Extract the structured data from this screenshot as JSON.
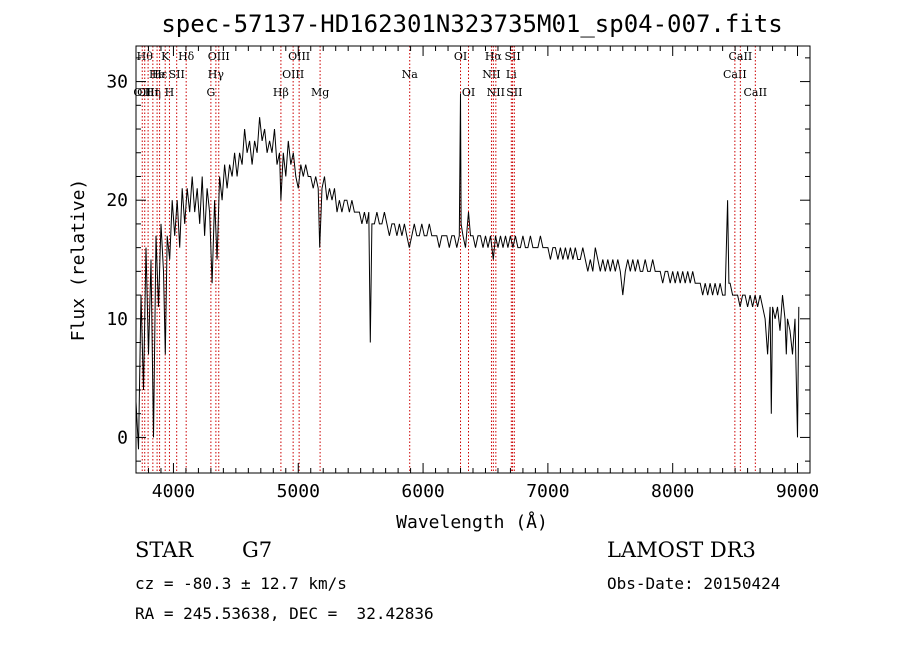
{
  "chart_data": {
    "type": "line",
    "title": "spec-57137-HD162301N323735M01_sp04-007.fits",
    "xlabel": "Wavelength (Å)",
    "ylabel": "Flux (relative)",
    "xlim": [
      3700,
      9100
    ],
    "ylim": [
      -3,
      33
    ],
    "x_ticks": [
      4000,
      5000,
      6000,
      7000,
      8000,
      9000
    ],
    "y_ticks": [
      0,
      10,
      20,
      30
    ],
    "grid": false,
    "series": [
      {
        "color": "#000000",
        "points": [
          [
            3700,
            3
          ],
          [
            3720,
            -1
          ],
          [
            3740,
            12
          ],
          [
            3760,
            4
          ],
          [
            3780,
            16
          ],
          [
            3800,
            7
          ],
          [
            3820,
            15
          ],
          [
            3840,
            0
          ],
          [
            3860,
            17
          ],
          [
            3880,
            11
          ],
          [
            3900,
            18
          ],
          [
            3920,
            14
          ],
          [
            3935,
            7
          ],
          [
            3950,
            17
          ],
          [
            3970,
            15
          ],
          [
            3990,
            20
          ],
          [
            4010,
            17
          ],
          [
            4030,
            20
          ],
          [
            4050,
            16
          ],
          [
            4070,
            21
          ],
          [
            4090,
            18
          ],
          [
            4110,
            21
          ],
          [
            4130,
            19
          ],
          [
            4150,
            22
          ],
          [
            4170,
            19
          ],
          [
            4190,
            21
          ],
          [
            4210,
            18
          ],
          [
            4230,
            22
          ],
          [
            4250,
            17
          ],
          [
            4270,
            21
          ],
          [
            4290,
            19
          ],
          [
            4310,
            13
          ],
          [
            4330,
            20
          ],
          [
            4350,
            15
          ],
          [
            4370,
            22
          ],
          [
            4390,
            20
          ],
          [
            4410,
            23
          ],
          [
            4430,
            21
          ],
          [
            4450,
            23
          ],
          [
            4470,
            22
          ],
          [
            4490,
            24
          ],
          [
            4510,
            22
          ],
          [
            4530,
            24
          ],
          [
            4550,
            23
          ],
          [
            4570,
            26
          ],
          [
            4590,
            24
          ],
          [
            4610,
            25
          ],
          [
            4630,
            23
          ],
          [
            4650,
            25
          ],
          [
            4670,
            24
          ],
          [
            4690,
            27
          ],
          [
            4710,
            25
          ],
          [
            4730,
            26
          ],
          [
            4750,
            24
          ],
          [
            4770,
            25
          ],
          [
            4790,
            24
          ],
          [
            4810,
            26
          ],
          [
            4830,
            23
          ],
          [
            4850,
            24
          ],
          [
            4861,
            20
          ],
          [
            4880,
            24
          ],
          [
            4900,
            22
          ],
          [
            4920,
            25
          ],
          [
            4940,
            23
          ],
          [
            4960,
            24
          ],
          [
            4980,
            22
          ],
          [
            5000,
            21
          ],
          [
            5020,
            23
          ],
          [
            5040,
            22
          ],
          [
            5060,
            23
          ],
          [
            5080,
            22
          ],
          [
            5100,
            22
          ],
          [
            5120,
            21
          ],
          [
            5140,
            22
          ],
          [
            5160,
            21
          ],
          [
            5172,
            16
          ],
          [
            5190,
            21
          ],
          [
            5210,
            22
          ],
          [
            5230,
            20
          ],
          [
            5250,
            21
          ],
          [
            5270,
            20
          ],
          [
            5290,
            21
          ],
          [
            5310,
            19
          ],
          [
            5330,
            20
          ],
          [
            5350,
            19
          ],
          [
            5370,
            20
          ],
          [
            5390,
            20
          ],
          [
            5410,
            19
          ],
          [
            5430,
            20
          ],
          [
            5450,
            19
          ],
          [
            5470,
            19
          ],
          [
            5490,
            19
          ],
          [
            5510,
            18
          ],
          [
            5530,
            19
          ],
          [
            5550,
            18
          ],
          [
            5565,
            19
          ],
          [
            5577,
            8
          ],
          [
            5590,
            18
          ],
          [
            5610,
            18
          ],
          [
            5630,
            19
          ],
          [
            5650,
            18
          ],
          [
            5670,
            18
          ],
          [
            5690,
            19
          ],
          [
            5710,
            18
          ],
          [
            5730,
            17
          ],
          [
            5750,
            18
          ],
          [
            5770,
            18
          ],
          [
            5790,
            17
          ],
          [
            5810,
            18
          ],
          [
            5830,
            17
          ],
          [
            5850,
            18
          ],
          [
            5870,
            17
          ],
          [
            5890,
            16
          ],
          [
            5910,
            17
          ],
          [
            5930,
            18
          ],
          [
            5950,
            17
          ],
          [
            5970,
            17
          ],
          [
            5990,
            18
          ],
          [
            6010,
            17
          ],
          [
            6030,
            17
          ],
          [
            6050,
            18
          ],
          [
            6070,
            17
          ],
          [
            6090,
            17
          ],
          [
            6110,
            17
          ],
          [
            6130,
            16
          ],
          [
            6150,
            17
          ],
          [
            6170,
            17
          ],
          [
            6190,
            17
          ],
          [
            6210,
            16
          ],
          [
            6230,
            17
          ],
          [
            6250,
            17
          ],
          [
            6270,
            16
          ],
          [
            6290,
            17
          ],
          [
            6300,
            29
          ],
          [
            6305,
            18
          ],
          [
            6320,
            17
          ],
          [
            6340,
            16
          ],
          [
            6364,
            19
          ],
          [
            6380,
            17
          ],
          [
            6400,
            17
          ],
          [
            6420,
            16
          ],
          [
            6440,
            17
          ],
          [
            6460,
            17
          ],
          [
            6480,
            16
          ],
          [
            6500,
            17
          ],
          [
            6520,
            16
          ],
          [
            6540,
            17
          ],
          [
            6563,
            15
          ],
          [
            6580,
            17
          ],
          [
            6600,
            16
          ],
          [
            6620,
            17
          ],
          [
            6640,
            16
          ],
          [
            6660,
            17
          ],
          [
            6680,
            16
          ],
          [
            6700,
            17
          ],
          [
            6720,
            16
          ],
          [
            6740,
            17
          ],
          [
            6760,
            16
          ],
          [
            6780,
            16
          ],
          [
            6800,
            17
          ],
          [
            6820,
            16
          ],
          [
            6840,
            16
          ],
          [
            6860,
            17
          ],
          [
            6880,
            16
          ],
          [
            6900,
            16
          ],
          [
            6920,
            16
          ],
          [
            6940,
            17
          ],
          [
            6960,
            16
          ],
          [
            6980,
            16
          ],
          [
            7000,
            16
          ],
          [
            7020,
            15
          ],
          [
            7040,
            16
          ],
          [
            7060,
            16
          ],
          [
            7080,
            15
          ],
          [
            7100,
            16
          ],
          [
            7120,
            15
          ],
          [
            7140,
            16
          ],
          [
            7160,
            15
          ],
          [
            7180,
            16
          ],
          [
            7200,
            15
          ],
          [
            7220,
            16
          ],
          [
            7240,
            15
          ],
          [
            7260,
            15
          ],
          [
            7280,
            16
          ],
          [
            7300,
            15
          ],
          [
            7320,
            14
          ],
          [
            7340,
            15
          ],
          [
            7360,
            14
          ],
          [
            7380,
            16
          ],
          [
            7400,
            15
          ],
          [
            7420,
            14
          ],
          [
            7440,
            15
          ],
          [
            7460,
            14
          ],
          [
            7480,
            15
          ],
          [
            7500,
            14
          ],
          [
            7520,
            15
          ],
          [
            7540,
            14
          ],
          [
            7560,
            15
          ],
          [
            7580,
            14
          ],
          [
            7600,
            12
          ],
          [
            7620,
            14
          ],
          [
            7640,
            15
          ],
          [
            7660,
            14
          ],
          [
            7680,
            15
          ],
          [
            7700,
            14
          ],
          [
            7720,
            15
          ],
          [
            7740,
            14
          ],
          [
            7760,
            14
          ],
          [
            7780,
            15
          ],
          [
            7800,
            14
          ],
          [
            7820,
            14
          ],
          [
            7840,
            15
          ],
          [
            7860,
            14
          ],
          [
            7880,
            14
          ],
          [
            7900,
            14
          ],
          [
            7920,
            13
          ],
          [
            7940,
            14
          ],
          [
            7960,
            14
          ],
          [
            7980,
            13
          ],
          [
            8000,
            14
          ],
          [
            8020,
            13
          ],
          [
            8040,
            14
          ],
          [
            8060,
            13
          ],
          [
            8080,
            14
          ],
          [
            8100,
            13
          ],
          [
            8120,
            14
          ],
          [
            8140,
            13
          ],
          [
            8160,
            14
          ],
          [
            8180,
            13
          ],
          [
            8200,
            13
          ],
          [
            8220,
            13
          ],
          [
            8240,
            12
          ],
          [
            8260,
            13
          ],
          [
            8280,
            12
          ],
          [
            8300,
            13
          ],
          [
            8320,
            12
          ],
          [
            8340,
            13
          ],
          [
            8360,
            12
          ],
          [
            8380,
            13
          ],
          [
            8400,
            12
          ],
          [
            8420,
            12
          ],
          [
            8440,
            20
          ],
          [
            8450,
            13
          ],
          [
            8460,
            13
          ],
          [
            8480,
            12
          ],
          [
            8500,
            12
          ],
          [
            8520,
            12
          ],
          [
            8540,
            11
          ],
          [
            8560,
            12
          ],
          [
            8580,
            12
          ],
          [
            8600,
            11
          ],
          [
            8620,
            12
          ],
          [
            8640,
            11
          ],
          [
            8660,
            12
          ],
          [
            8680,
            11
          ],
          [
            8700,
            12
          ],
          [
            8720,
            11
          ],
          [
            8740,
            10
          ],
          [
            8760,
            7
          ],
          [
            8780,
            11
          ],
          [
            8790,
            2
          ],
          [
            8800,
            11
          ],
          [
            8820,
            10
          ],
          [
            8840,
            11
          ],
          [
            8860,
            9
          ],
          [
            8880,
            12
          ],
          [
            8900,
            10
          ],
          [
            8910,
            7
          ],
          [
            8920,
            10
          ],
          [
            8940,
            9
          ],
          [
            8960,
            7
          ],
          [
            8980,
            10
          ],
          [
            9000,
            0
          ],
          [
            9010,
            11
          ]
        ]
      }
    ],
    "line_marks": [
      {
        "x": 3750,
        "labels": [
          "OII"
        ],
        "row": 2
      },
      {
        "x": 3770,
        "labels": [
          "Hθ"
        ],
        "row": 0
      },
      {
        "x": 3797,
        "labels": [
          "OIII"
        ],
        "row": 2
      },
      {
        "x": 3835,
        "labels": [
          "Hη"
        ],
        "row": 2
      },
      {
        "x": 3869,
        "labels": [
          "He"
        ],
        "row": 1
      },
      {
        "x": 3889,
        "labels": [
          "Hε"
        ],
        "row": 1
      },
      {
        "x": 3934,
        "labels": [
          "K"
        ],
        "row": 0
      },
      {
        "x": 3968,
        "labels": [
          "H"
        ],
        "row": 2
      },
      {
        "x": 4026,
        "labels": [
          "SII"
        ],
        "row": 1
      },
      {
        "x": 4102,
        "labels": [
          "Hδ"
        ],
        "row": 0
      },
      {
        "x": 4300,
        "labels": [
          "G"
        ],
        "row": 2
      },
      {
        "x": 4340,
        "labels": [
          "Hγ"
        ],
        "row": 1
      },
      {
        "x": 4363,
        "labels": [
          "OIII"
        ],
        "row": 0
      },
      {
        "x": 4861,
        "labels": [
          "Hβ"
        ],
        "row": 2
      },
      {
        "x": 4959,
        "labels": [
          "OIII"
        ],
        "row": 1
      },
      {
        "x": 5007,
        "labels": [
          "OIII"
        ],
        "row": 0
      },
      {
        "x": 5175,
        "labels": [
          "Mg"
        ],
        "row": 2
      },
      {
        "x": 5893,
        "labels": [
          "Na"
        ],
        "row": 1
      },
      {
        "x": 6300,
        "labels": [
          "OI"
        ],
        "row": 0
      },
      {
        "x": 6364,
        "labels": [
          "OI"
        ],
        "row": 2
      },
      {
        "x": 6548,
        "labels": [
          "NII"
        ],
        "row": 1
      },
      {
        "x": 6563,
        "labels": [
          "Hα"
        ],
        "row": 0
      },
      {
        "x": 6583,
        "labels": [
          "NII"
        ],
        "row": 2
      },
      {
        "x": 6707,
        "labels": [
          "Li"
        ],
        "row": 1
      },
      {
        "x": 6717,
        "labels": [
          "SII"
        ],
        "row": 0
      },
      {
        "x": 6731,
        "labels": [
          "SII"
        ],
        "row": 2
      },
      {
        "x": 8498,
        "labels": [
          "CaII"
        ],
        "row": 1
      },
      {
        "x": 8542,
        "labels": [
          "CaII"
        ],
        "row": 0
      },
      {
        "x": 8662,
        "labels": [
          "CaII"
        ],
        "row": 2
      }
    ],
    "line_mark_color": "#cc0000"
  },
  "info": {
    "object_class": "STAR",
    "subclass": "G7",
    "survey": "LAMOST DR3",
    "velocity": "cz = -80.3 ± 12.7 km/s",
    "obs_date": "Obs-Date: 20150424",
    "coords": "RA = 245.53638, DEC =  32.42836"
  }
}
